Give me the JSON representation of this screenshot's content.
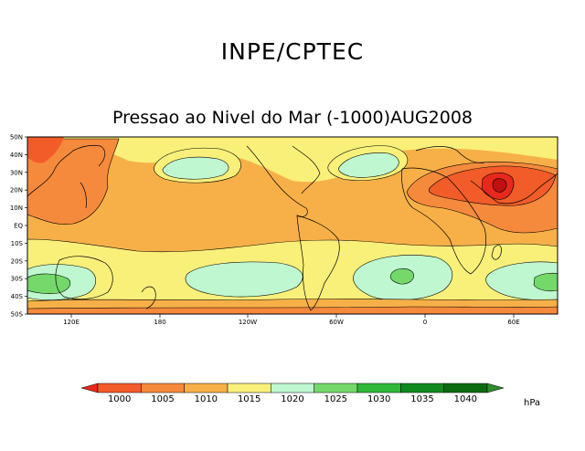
{
  "header": {
    "title": "INPE/CPTEC",
    "subtitle": "Pressao ao Nivel do Mar (-1000)AUG2008"
  },
  "map": {
    "lat_labels": [
      "50N",
      "40N",
      "30N",
      "20N",
      "10N",
      "EQ",
      "10S",
      "20S",
      "30S",
      "40S",
      "50S"
    ],
    "lon_labels": [
      "120E",
      "180",
      "120W",
      "60W",
      "0",
      "60E"
    ],
    "regions": [
      {
        "name": "north-pacific-high",
        "level": "1020-1025"
      },
      {
        "name": "azores-high",
        "level": "1020-1025"
      },
      {
        "name": "asian-low",
        "level": "1000-1005"
      },
      {
        "name": "south-pacific-high",
        "level": "1020-1025"
      },
      {
        "name": "south-atlantic-high",
        "level": "1025-1030"
      },
      {
        "name": "indian-ocean-high",
        "level": "1020-1025"
      },
      {
        "name": "australian-high",
        "level": "1020-1025"
      }
    ]
  },
  "colorbar": {
    "levels": [
      "1000",
      "1005",
      "1010",
      "1015",
      "1020",
      "1025",
      "1030",
      "1035",
      "1040"
    ],
    "colors": [
      "#e8281c",
      "#f25c28",
      "#f58a3c",
      "#f7b048",
      "#f9f07a",
      "#bff7d0",
      "#74d96a",
      "#2fb83a",
      "#108a1e",
      "#0a6b10",
      "#2e8b2e"
    ],
    "unit": "hPa"
  }
}
